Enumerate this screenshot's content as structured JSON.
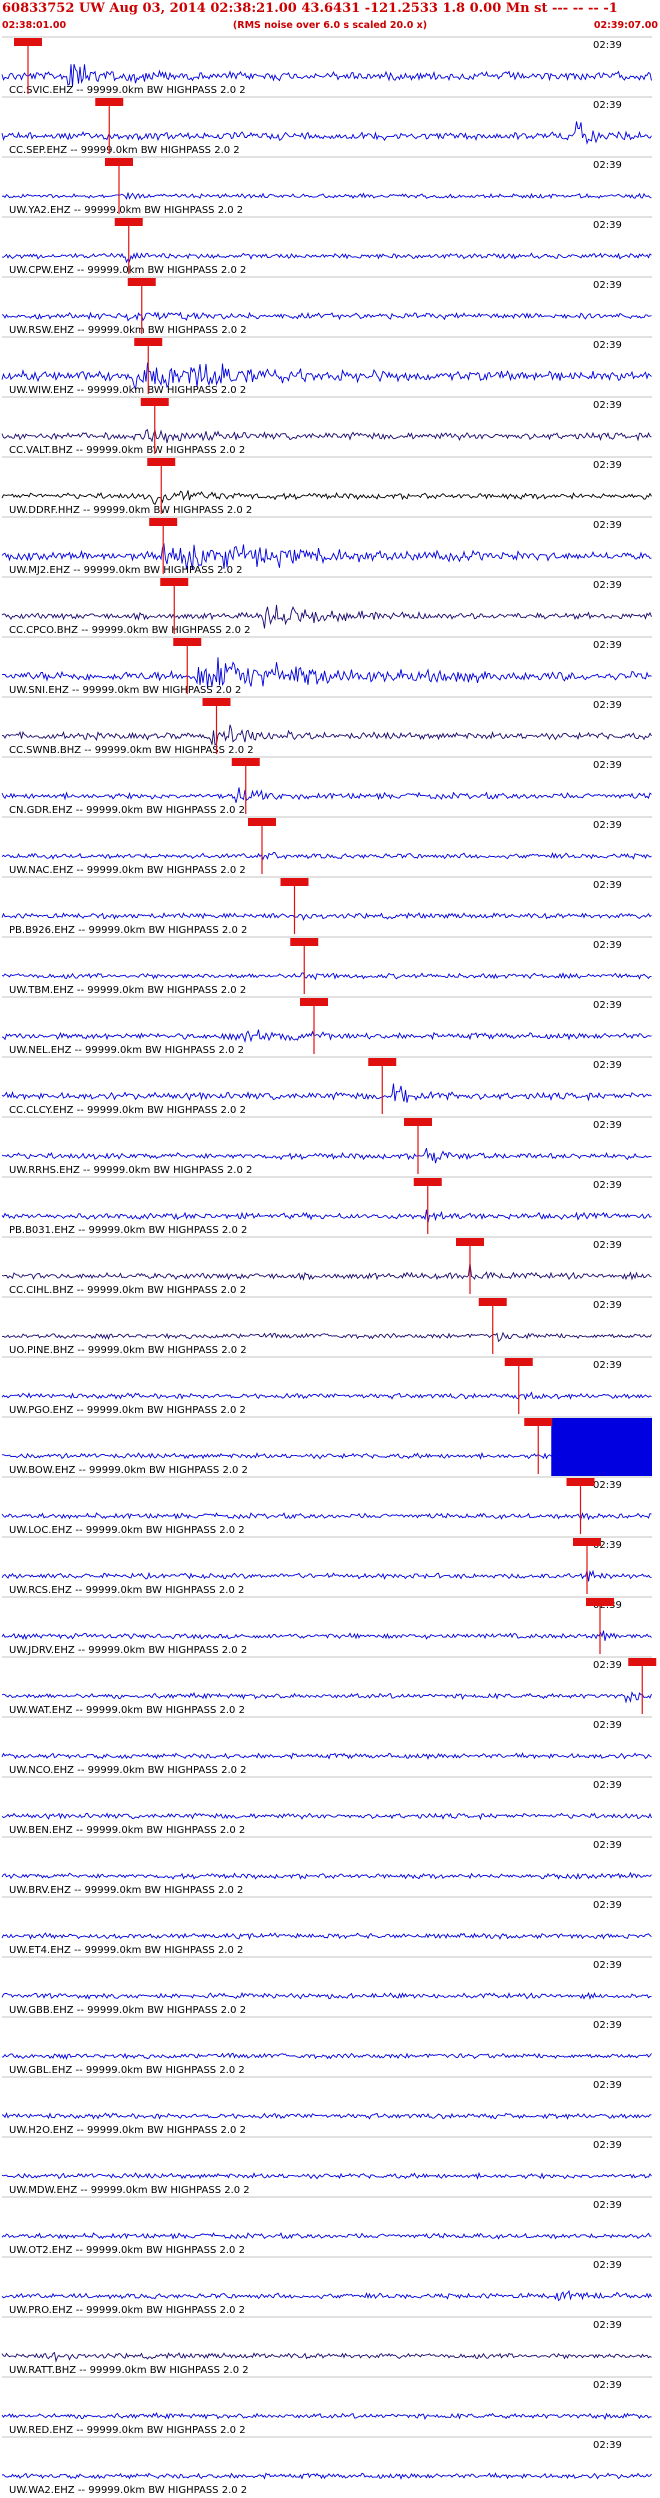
{
  "header": {
    "title": "60833752 UW Aug 03, 2014 02:38:21.00   43.6431 -121.2533  1.8 0.00 Mn st --- -- --   -1",
    "subtitle": "(RMS noise over 6.0 s scaled 20.0 x)",
    "start_time": "02:38:01.00",
    "end_time": "02:39:07.00"
  },
  "tick_label": "02:39",
  "colors": {
    "red": "#e01010",
    "blue": "#0000e0",
    "navy": "#1a0a6e",
    "black": "#000000"
  },
  "stations": [
    {
      "label": "CC.SVIC.EHZ -- 99999.0km BW  HIGHPASS  2.0  2",
      "color": "blue",
      "pick": 0.04,
      "amp": 0.5,
      "burst": [
        0.1,
        0.26,
        0.9
      ]
    },
    {
      "label": "CC.SEP.EHZ -- 99999.0km BW  HIGHPASS  2.0  2",
      "color": "blue",
      "pick": 0.165,
      "amp": 0.45,
      "burst": [
        0.88,
        0.97,
        1.1
      ]
    },
    {
      "label": "UW.YA2.EHZ -- 99999.0km BW  HIGHPASS  2.0  2",
      "color": "blue",
      "pick": 0.18,
      "amp": 0.25,
      "burst": [
        0.19,
        0.22,
        1.0
      ]
    },
    {
      "label": "UW.CPW.EHZ -- 99999.0km BW  HIGHPASS  2.0  2",
      "color": "blue",
      "pick": 0.195,
      "amp": 0.3,
      "burst": [
        0.19,
        0.23,
        0.6
      ]
    },
    {
      "label": "UW.RSW.EHZ -- 99999.0km BW  HIGHPASS  2.0  2",
      "color": "blue",
      "pick": 0.215,
      "amp": 0.35,
      "burst": [
        0.19,
        0.3,
        0.7
      ]
    },
    {
      "label": "UW.WIW.EHZ -- 99999.0km BW  HIGHPASS  2.0  2",
      "color": "blue",
      "pick": 0.225,
      "amp": 0.55,
      "burst": [
        0.2,
        0.62,
        0.9
      ]
    },
    {
      "label": "CC.VALT.BHZ -- 99999.0km BW  HIGHPASS  2.0  2",
      "color": "navy",
      "pick": 0.235,
      "amp": 0.4,
      "burst": [
        0.22,
        0.36,
        0.6
      ]
    },
    {
      "label": "UW.DDRF.HHZ -- 99999.0km BW  HIGHPASS  2.0  2",
      "color": "black",
      "pick": 0.245,
      "amp": 0.35,
      "burst": [
        0.23,
        0.4,
        0.8
      ]
    },
    {
      "label": "UW.MJ2.EHZ -- 99999.0km BW  HIGHPASS  2.0  2",
      "color": "blue",
      "pick": 0.248,
      "amp": 0.45,
      "burst": [
        0.24,
        0.85,
        0.9
      ]
    },
    {
      "label": "CC.CPCO.BHZ -- 99999.0km BW  HIGHPASS  2.0  2",
      "color": "navy",
      "pick": 0.265,
      "amp": 0.35,
      "burst": [
        0.4,
        0.65,
        1.0
      ]
    },
    {
      "label": "UW.SNI.EHZ -- 99999.0km BW  HIGHPASS  2.0  2",
      "color": "blue",
      "pick": 0.285,
      "amp": 0.55,
      "burst": [
        0.3,
        0.82,
        0.9
      ]
    },
    {
      "label": "CC.SWNB.BHZ -- 99999.0km BW  HIGHPASS  2.0  2",
      "color": "navy",
      "pick": 0.33,
      "amp": 0.4,
      "burst": [
        0.32,
        0.52,
        0.8
      ]
    },
    {
      "label": "CN.GDR.EHZ -- 99999.0km BW  HIGHPASS  2.0  2",
      "color": "blue",
      "pick": 0.375,
      "amp": 0.35,
      "burst": [
        0.36,
        0.46,
        0.9
      ]
    },
    {
      "label": "UW.NAC.EHZ -- 99999.0km BW  HIGHPASS  2.0  2",
      "color": "blue",
      "pick": 0.4,
      "amp": 0.3,
      "burst": [
        0.4,
        0.46,
        0.4
      ]
    },
    {
      "label": "PB.B926.EHZ -- 99999.0km BW  HIGHPASS  2.0  2",
      "color": "blue",
      "pick": 0.45,
      "amp": 0.3,
      "burst": [
        0.45,
        0.48,
        0.6
      ]
    },
    {
      "label": "UW.TBM.EHZ -- 99999.0km BW  HIGHPASS  2.0  2",
      "color": "blue",
      "pick": 0.465,
      "amp": 0.3,
      "burst": [
        0.46,
        0.49,
        0.7
      ]
    },
    {
      "label": "UW.NEL.EHZ -- 99999.0km BW  HIGHPASS  2.0  2",
      "color": "blue",
      "pick": 0.48,
      "amp": 0.35,
      "burst": [
        0.36,
        0.55,
        0.6
      ]
    },
    {
      "label": "CC.CLCY.EHZ -- 99999.0km BW  HIGHPASS  2.0  2",
      "color": "blue",
      "pick": 0.585,
      "amp": 0.4,
      "burst": [
        0.6,
        0.7,
        1.1
      ]
    },
    {
      "label": "UW.RRHS.EHZ -- 99999.0km BW  HIGHPASS  2.0  2",
      "color": "blue",
      "pick": 0.64,
      "amp": 0.35,
      "burst": [
        0.65,
        0.72,
        0.8
      ]
    },
    {
      "label": "PB.B031.EHZ -- 99999.0km BW  HIGHPASS  2.0  2",
      "color": "blue",
      "pick": 0.655,
      "amp": 0.35,
      "burst": [
        0.65,
        0.7,
        0.9
      ]
    },
    {
      "label": "CC.CIHL.BHZ -- 99999.0km BW  HIGHPASS  2.0  2",
      "color": "navy",
      "pick": 0.72,
      "amp": 0.35,
      "burst": [
        0.72,
        0.8,
        0.7
      ]
    },
    {
      "label": "UO.PINE.BHZ -- 99999.0km BW  HIGHPASS  2.0  2",
      "color": "navy",
      "pick": 0.755,
      "amp": 0.3,
      "burst": [
        0.76,
        0.82,
        0.6
      ]
    },
    {
      "label": "UW.PGO.EHZ -- 99999.0km BW  HIGHPASS  2.0  2",
      "color": "blue",
      "pick": 0.795,
      "amp": 0.3,
      "burst": [
        0.8,
        0.86,
        0.6
      ]
    },
    {
      "label": "UW.BOW.EHZ -- 99999.0km BW  HIGHPASS  2.0  2",
      "color": "blue",
      "pick": 0.825,
      "amp": 0.3,
      "saturated": 0.845
    },
    {
      "label": "UW.LOC.EHZ -- 99999.0km BW  HIGHPASS  2.0  2",
      "color": "blue",
      "pick": 0.89,
      "amp": 0.3,
      "burst": [
        0.89,
        0.92,
        0.6
      ]
    },
    {
      "label": "UW.RCS.EHZ -- 99999.0km BW  HIGHPASS  2.0  2",
      "color": "blue",
      "pick": 0.9,
      "amp": 0.3,
      "burst": [
        0.9,
        0.93,
        0.9
      ]
    },
    {
      "label": "UW.JDRV.EHZ -- 99999.0km BW  HIGHPASS  2.0  2",
      "color": "blue",
      "pick": 0.92,
      "amp": 0.3,
      "burst": [
        0.92,
        0.95,
        0.6
      ]
    },
    {
      "label": "UW.WAT.EHZ -- 99999.0km BW  HIGHPASS  2.0  2",
      "color": "blue",
      "pick": 0.985,
      "amp": 0.3,
      "burst": [
        0.96,
        0.99,
        0.9
      ]
    },
    {
      "label": "UW.NCO.EHZ -- 99999.0km BW  HIGHPASS  2.0  2",
      "color": "blue",
      "pick": null,
      "amp": 0.3
    },
    {
      "label": "UW.BEN.EHZ -- 99999.0km BW  HIGHPASS  2.0  2",
      "color": "blue",
      "pick": null,
      "amp": 0.3
    },
    {
      "label": "UW.BRV.EHZ -- 99999.0km BW  HIGHPASS  2.0  2",
      "color": "blue",
      "pick": null,
      "amp": 0.3
    },
    {
      "label": "UW.ET4.EHZ -- 99999.0km BW  HIGHPASS  2.0  2",
      "color": "blue",
      "pick": null,
      "amp": 0.3
    },
    {
      "label": "UW.GBB.EHZ -- 99999.0km BW  HIGHPASS  2.0  2",
      "color": "blue",
      "pick": null,
      "amp": 0.3
    },
    {
      "label": "UW.GBL.EHZ -- 99999.0km BW  HIGHPASS  2.0  2",
      "color": "blue",
      "pick": null,
      "amp": 0.3
    },
    {
      "label": "UW.H2O.EHZ -- 99999.0km BW  HIGHPASS  2.0  2",
      "color": "blue",
      "pick": null,
      "amp": 0.3
    },
    {
      "label": "UW.MDW.EHZ -- 99999.0km BW  HIGHPASS  2.0  2",
      "color": "blue",
      "pick": null,
      "amp": 0.3
    },
    {
      "label": "UW.OT2.EHZ -- 99999.0km BW  HIGHPASS  2.0  2",
      "color": "blue",
      "pick": null,
      "amp": 0.3
    },
    {
      "label": "UW.PRO.EHZ -- 99999.0km BW  HIGHPASS  2.0  2",
      "color": "blue",
      "pick": null,
      "amp": 0.3,
      "burst": [
        0.85,
        0.98,
        0.5
      ]
    },
    {
      "label": "UW.RATT.BHZ -- 99999.0km BW  HIGHPASS  2.0  2",
      "color": "navy",
      "pick": null,
      "amp": 0.3,
      "burst": [
        0.07,
        0.14,
        0.6
      ]
    },
    {
      "label": "UW.RED.EHZ -- 99999.0km BW  HIGHPASS  2.0  2",
      "color": "blue",
      "pick": null,
      "amp": 0.3
    },
    {
      "label": "UW.WA2.EHZ -- 99999.0km BW  HIGHPASS  2.0  2",
      "color": "blue",
      "pick": null,
      "amp": 0.3
    }
  ]
}
